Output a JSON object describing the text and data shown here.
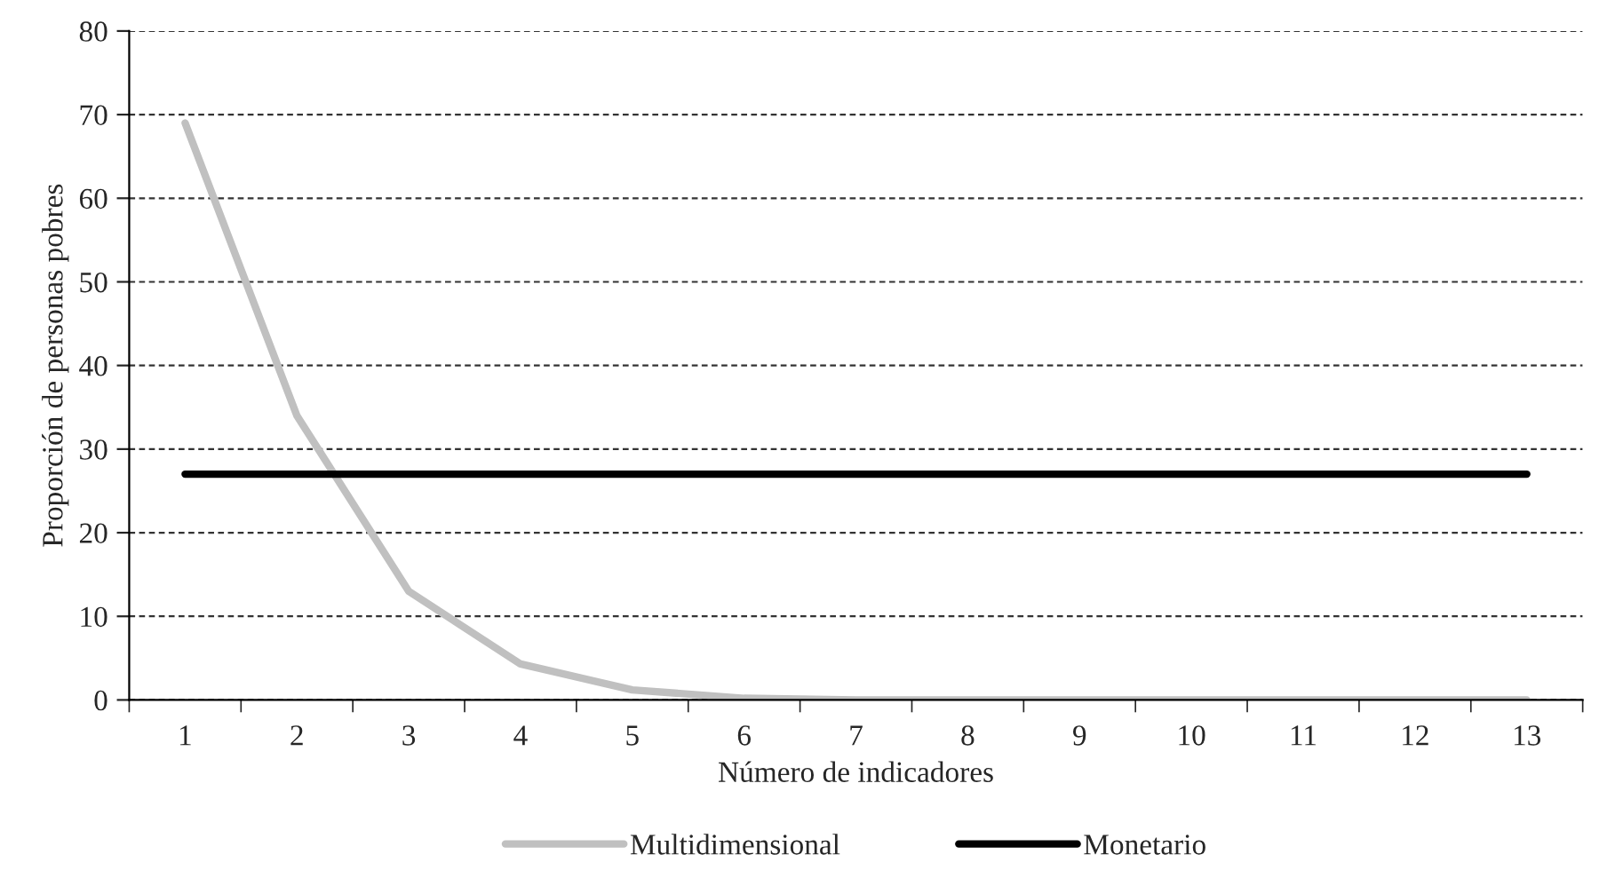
{
  "chart_data": {
    "type": "line",
    "xlabel": "Número de indicadores",
    "ylabel": "Proporción de personas pobres",
    "categories": [
      "1",
      "2",
      "3",
      "4",
      "5",
      "6",
      "7",
      "8",
      "9",
      "10",
      "11",
      "12",
      "13"
    ],
    "series": [
      {
        "name": "Multidimensional",
        "color": "#c0c0c0",
        "values": [
          69,
          34,
          13,
          4.3,
          1.2,
          0.2,
          0,
          0,
          0,
          0,
          0,
          0,
          0
        ]
      },
      {
        "name": "Monetario",
        "color": "#000000",
        "values": [
          27,
          27,
          27,
          27,
          27,
          27,
          27,
          27,
          27,
          27,
          27,
          27,
          27
        ]
      }
    ],
    "ylim": [
      0,
      80
    ],
    "yticks": [
      0,
      10,
      20,
      30,
      40,
      50,
      60,
      70,
      80
    ],
    "grid": "y",
    "legend": "bottom",
    "marker": "none",
    "line_style": "solid"
  }
}
